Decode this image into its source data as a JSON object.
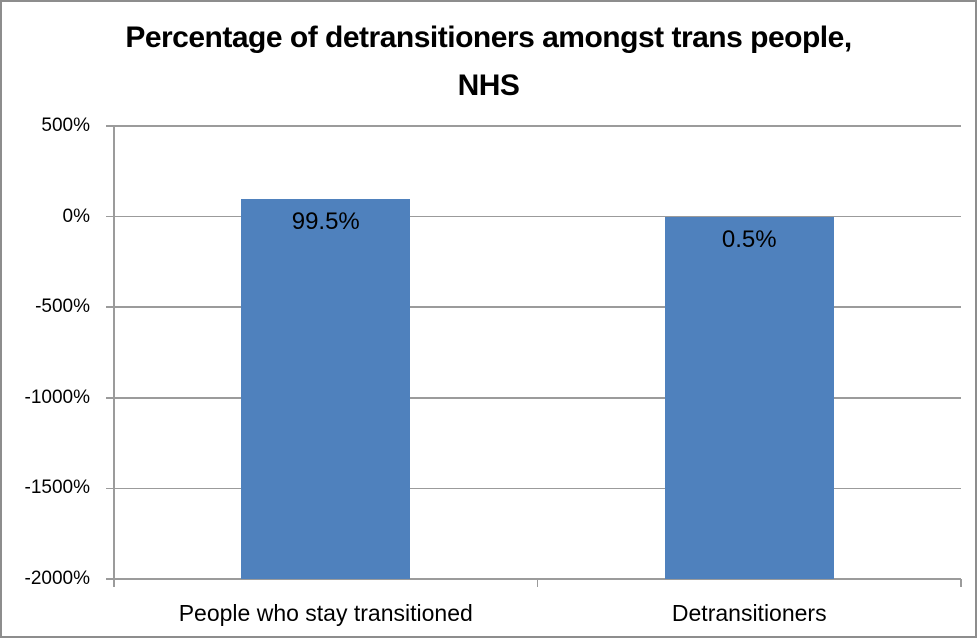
{
  "window": {
    "background": "#FFFFFF",
    "border_color": "#8D8D8D"
  },
  "chart_data": {
    "type": "bar",
    "title": "Percentage of detransitioners amongst trans people, NHS",
    "categories": [
      "People who stay transitioned",
      "Detransitioners"
    ],
    "values": [
      99.5,
      0.5
    ],
    "data_labels": [
      "99.5%",
      "0.5%"
    ],
    "xlabel": "",
    "ylabel": "",
    "ylim": [
      -2000,
      500
    ],
    "ytick_step": 500,
    "ytick_labels": [
      "500%",
      "0%",
      "-500%",
      "-1000%",
      "-1500%",
      "-2000%"
    ],
    "grid": true,
    "legend": false,
    "bar_color": "#4F81BD",
    "gridline_color": "#9B9B9B",
    "axis_color": "#9B9B9B",
    "text_color": "#000000",
    "bars_drawn_from_plot_bottom": true
  }
}
